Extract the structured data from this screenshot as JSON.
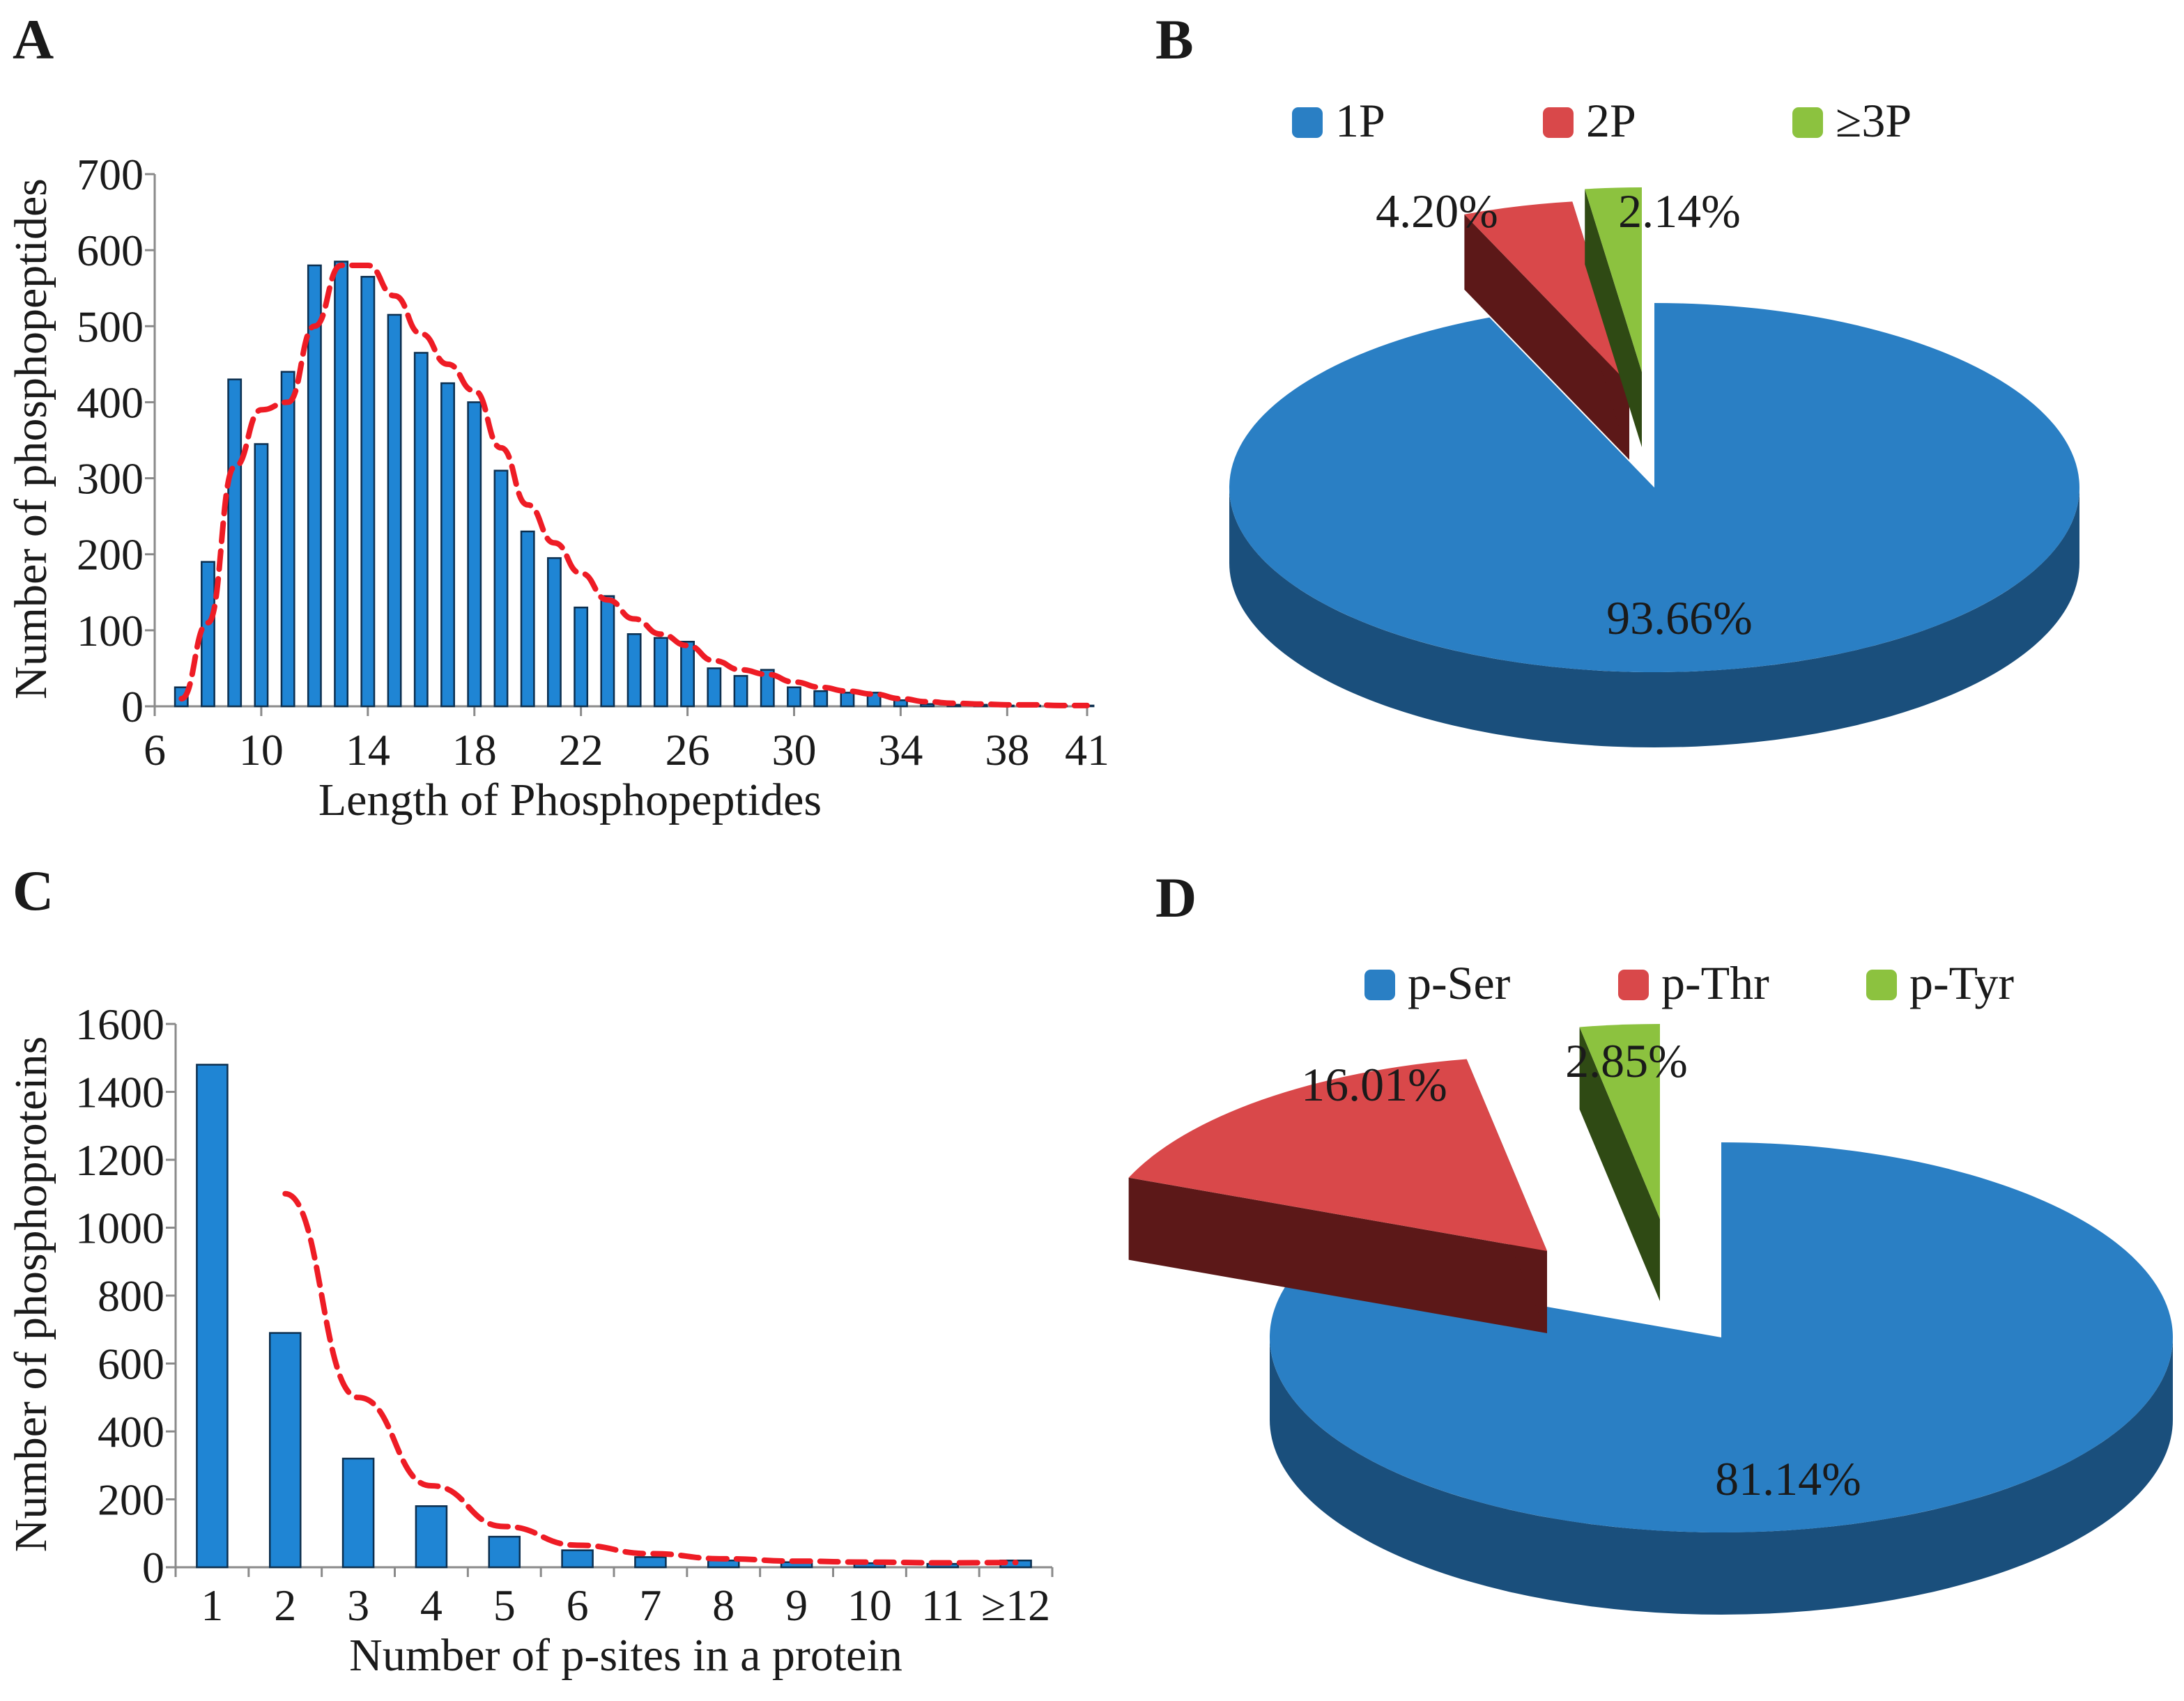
{
  "figure": {
    "panel_labels": [
      "A",
      "B",
      "C",
      "D"
    ]
  },
  "chart_data": [
    {
      "panel": "A",
      "type": "bar",
      "title": "",
      "xlabel": "Length of Phosphopeptides",
      "ylabel": "Number of phosphopeptides",
      "ylim": [
        0,
        700
      ],
      "yticks": [
        0,
        100,
        200,
        300,
        400,
        500,
        600,
        700
      ],
      "xticks": [
        "6",
        "10",
        "14",
        "18",
        "22",
        "26",
        "30",
        "34",
        "38",
        "41"
      ],
      "xtick_positions": [
        6,
        10,
        14,
        18,
        22,
        26,
        30,
        34,
        38,
        41
      ],
      "xlim": [
        6,
        41
      ],
      "bar_color": "#1f85d4",
      "trend_color": "#ee1c25",
      "x": [
        7,
        8,
        9,
        10,
        11,
        12,
        13,
        14,
        15,
        16,
        17,
        18,
        19,
        20,
        21,
        22,
        23,
        24,
        25,
        26,
        27,
        28,
        29,
        30,
        31,
        32,
        33,
        34,
        35,
        36,
        37,
        38,
        39,
        40,
        41
      ],
      "values": [
        25,
        190,
        430,
        345,
        440,
        580,
        585,
        565,
        515,
        465,
        425,
        400,
        310,
        230,
        195,
        130,
        145,
        95,
        90,
        85,
        50,
        40,
        48,
        25,
        20,
        18,
        18,
        8,
        3,
        2,
        2,
        1,
        1,
        1,
        1
      ],
      "trend": [
        10,
        110,
        315,
        390,
        400,
        500,
        580,
        580,
        540,
        490,
        450,
        415,
        340,
        265,
        215,
        175,
        140,
        115,
        95,
        80,
        60,
        48,
        42,
        32,
        25,
        20,
        16,
        10,
        6,
        4,
        3,
        2,
        2,
        1,
        1
      ]
    },
    {
      "panel": "B",
      "type": "pie",
      "legend": [
        "1P",
        "2P",
        "≥3P"
      ],
      "values": [
        93.66,
        4.2,
        2.14
      ],
      "labels": [
        "93.66%",
        "4.20%",
        "2.14%"
      ],
      "colors": [
        "#2a7fc4",
        "#d9484a",
        "#8cc23f"
      ],
      "side_colors": [
        "#1a4f7c",
        "#5c1818",
        "#2f4a14"
      ]
    },
    {
      "panel": "C",
      "type": "bar",
      "title": "",
      "xlabel": "Number of p-sites in a protein",
      "ylabel": "Number of phosphoproteins",
      "ylim": [
        0,
        1600
      ],
      "yticks": [
        0,
        200,
        400,
        600,
        800,
        1000,
        1200,
        1400,
        1600
      ],
      "categories": [
        "1",
        "2",
        "3",
        "4",
        "5",
        "6",
        "7",
        "8",
        "9",
        "10",
        "11",
        "≥12"
      ],
      "values": [
        1480,
        690,
        320,
        180,
        90,
        50,
        30,
        20,
        15,
        12,
        10,
        20
      ],
      "trend": [
        null,
        1100,
        500,
        240,
        120,
        65,
        40,
        25,
        18,
        15,
        13,
        14
      ],
      "bar_color": "#1f85d4",
      "trend_color": "#ee1c25"
    },
    {
      "panel": "D",
      "type": "pie",
      "legend": [
        "p-Ser",
        "p-Thr",
        "p-Tyr"
      ],
      "values": [
        81.14,
        16.01,
        2.85
      ],
      "labels": [
        "81.14%",
        "16.01%",
        "2.85%"
      ],
      "colors": [
        "#2a7fc4",
        "#d9484a",
        "#8cc23f"
      ],
      "side_colors": [
        "#1a4f7c",
        "#5c1818",
        "#2f4a14"
      ]
    }
  ]
}
